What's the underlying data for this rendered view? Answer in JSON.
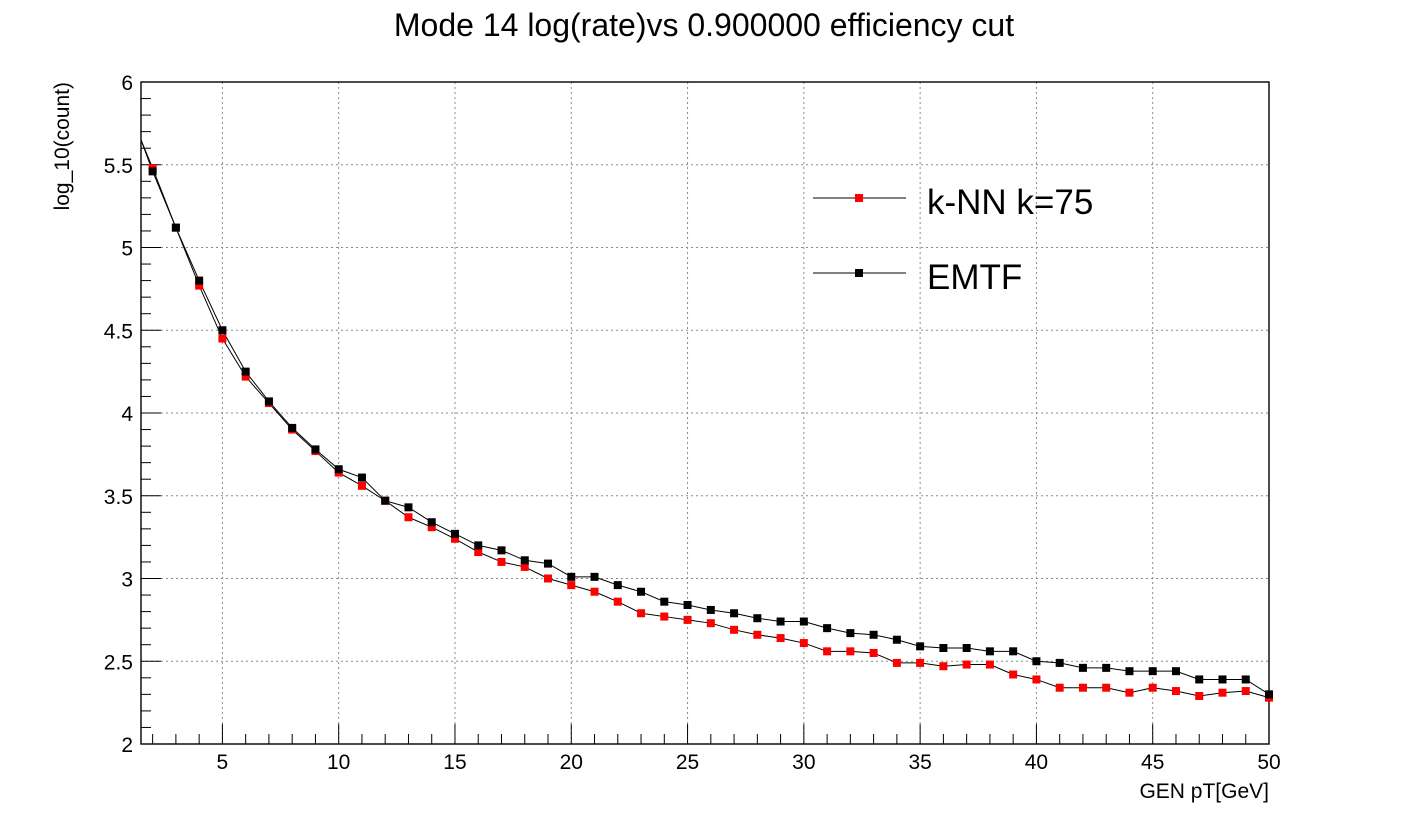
{
  "chart_data": {
    "type": "scatter",
    "title": "Mode 14 log(rate)vs 0.900000 efficiency cut",
    "xlabel": "GEN pT[GeV]",
    "ylabel": "log_10(count)",
    "xlim": [
      1.5,
      50
    ],
    "ylim": [
      2,
      6
    ],
    "x_ticks": [
      5,
      10,
      15,
      20,
      25,
      30,
      35,
      40,
      45,
      50
    ],
    "y_ticks": [
      2,
      2.5,
      3,
      3.5,
      4,
      4.5,
      5,
      5.5,
      6
    ],
    "x_tick_labels": [
      "5",
      "10",
      "15",
      "20",
      "25",
      "30",
      "35",
      "40",
      "45",
      "50"
    ],
    "y_tick_labels": [
      "2",
      "2.5",
      "3",
      "3.5",
      "4",
      "4.5",
      "5",
      "5.5",
      "6"
    ],
    "grid": true,
    "legend_position": "top-right",
    "x": [
      2,
      3,
      4,
      5,
      6,
      7,
      8,
      9,
      10,
      11,
      12,
      13,
      14,
      15,
      16,
      17,
      18,
      19,
      20,
      21,
      22,
      23,
      24,
      25,
      26,
      27,
      28,
      29,
      30,
      31,
      32,
      33,
      34,
      35,
      36,
      37,
      38,
      39,
      40,
      41,
      42,
      43,
      44,
      45,
      46,
      47,
      48,
      49,
      50
    ],
    "series": [
      {
        "name": "k-NN k=75",
        "color": "#ff0000",
        "values": [
          5.48,
          5.12,
          4.77,
          4.45,
          4.22,
          4.06,
          3.9,
          3.77,
          3.64,
          3.56,
          3.47,
          3.37,
          3.31,
          3.24,
          3.16,
          3.1,
          3.07,
          3.0,
          2.96,
          2.92,
          2.86,
          2.79,
          2.77,
          2.75,
          2.73,
          2.69,
          2.66,
          2.64,
          2.61,
          2.56,
          2.56,
          2.55,
          2.49,
          2.49,
          2.47,
          2.48,
          2.48,
          2.42,
          2.39,
          2.34,
          2.34,
          2.34,
          2.31,
          2.34,
          2.32,
          2.29,
          2.31,
          2.32,
          2.28
        ]
      },
      {
        "name": "EMTF",
        "color": "#000000",
        "values": [
          5.46,
          5.12,
          4.8,
          4.5,
          4.25,
          4.07,
          3.91,
          3.78,
          3.66,
          3.61,
          3.47,
          3.43,
          3.34,
          3.27,
          3.2,
          3.17,
          3.11,
          3.09,
          3.01,
          3.01,
          2.96,
          2.92,
          2.86,
          2.84,
          2.81,
          2.79,
          2.76,
          2.74,
          2.74,
          2.7,
          2.67,
          2.66,
          2.63,
          2.59,
          2.58,
          2.58,
          2.56,
          2.56,
          2.5,
          2.49,
          2.46,
          2.46,
          2.44,
          2.44,
          2.44,
          2.39,
          2.39,
          2.39,
          2.3
        ]
      }
    ],
    "line_start": {
      "x": 1.5,
      "y": 5.65
    }
  }
}
